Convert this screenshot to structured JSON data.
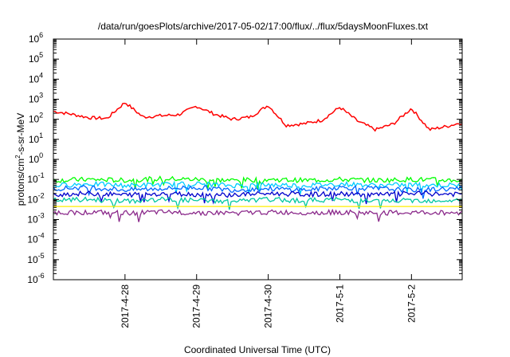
{
  "chart_data": {
    "type": "line",
    "title": "/data/run/goesPlots/archive/2017-05-02/17:00/flux/../flux/5daysMoonFluxes.txt",
    "xlabel": "Coordinated Universal Time (UTC)",
    "ylabel": "protons/cm2-s-sr-MeV",
    "y_scale": "log",
    "ylim": [
      1e-06,
      1000000.0
    ],
    "xlim": [
      "2017-04-27 00:00",
      "2017-05-02 17:00"
    ],
    "grid": false,
    "legend": "none",
    "x_ticks": [
      "2017-4-28",
      "2017-4-29",
      "2017-4-30",
      "2017-5-1",
      "2017-5-2"
    ],
    "y_ticks": [
      {
        "base": "10",
        "exp": "-6"
      },
      {
        "base": "10",
        "exp": "-5"
      },
      {
        "base": "10",
        "exp": "-4"
      },
      {
        "base": "10",
        "exp": "-3"
      },
      {
        "base": "10",
        "exp": "-2"
      },
      {
        "base": "10",
        "exp": "-1"
      },
      {
        "base": "10",
        "exp": "0"
      },
      {
        "base": "10",
        "exp": "1"
      },
      {
        "base": "10",
        "exp": "2"
      },
      {
        "base": "10",
        "exp": "3"
      },
      {
        "base": "10",
        "exp": "4"
      },
      {
        "base": "10",
        "exp": "5"
      },
      {
        "base": "10",
        "exp": "6"
      }
    ],
    "series": [
      {
        "color": "#ff0000",
        "x": [
          "2017-04-27 00:00",
          "2017-04-27 06:00",
          "2017-04-27 12:00",
          "2017-04-27 18:00",
          "2017-04-28 00:00",
          "2017-04-28 06:00",
          "2017-04-28 12:00",
          "2017-04-28 18:00",
          "2017-04-29 00:00",
          "2017-04-29 06:00",
          "2017-04-29 12:00",
          "2017-04-29 18:00",
          "2017-04-30 00:00",
          "2017-04-30 06:00",
          "2017-04-30 12:00",
          "2017-04-30 18:00",
          "2017-05-01 00:00",
          "2017-05-01 06:00",
          "2017-05-01 12:00",
          "2017-05-01 18:00",
          "2017-05-02 00:00",
          "2017-05-02 06:00",
          "2017-05-02 12:00",
          "2017-05-02 17:00"
        ],
        "y": [
          250,
          180,
          120,
          110,
          700,
          130,
          150,
          170,
          450,
          180,
          100,
          130,
          500,
          50,
          60,
          90,
          400,
          80,
          30,
          60,
          350,
          30,
          45,
          70
        ]
      },
      {
        "color": "#00ff00",
        "x": [
          "2017-04-27 00:00",
          "2017-04-27 12:00",
          "2017-04-28 00:00",
          "2017-04-28 12:00",
          "2017-04-29 00:00",
          "2017-04-29 12:00",
          "2017-04-30 00:00",
          "2017-04-30 12:00",
          "2017-05-01 00:00",
          "2017-05-01 12:00",
          "2017-05-02 00:00",
          "2017-05-02 17:00"
        ],
        "y": [
          0.09,
          0.1,
          0.09,
          0.11,
          0.1,
          0.09,
          0.1,
          0.09,
          0.1,
          0.09,
          0.1,
          0.09
        ]
      },
      {
        "color": "#00ccff",
        "x": [
          "2017-04-27 00:00",
          "2017-04-27 12:00",
          "2017-04-28 00:00",
          "2017-04-28 12:00",
          "2017-04-29 00:00",
          "2017-04-29 12:00",
          "2017-04-30 00:00",
          "2017-04-30 12:00",
          "2017-05-01 00:00",
          "2017-05-01 12:00",
          "2017-05-02 00:00",
          "2017-05-02 17:00"
        ],
        "y": [
          0.05,
          0.06,
          0.05,
          0.055,
          0.06,
          0.05,
          0.055,
          0.05,
          0.06,
          0.05,
          0.055,
          0.05
        ]
      },
      {
        "color": "#0066ff",
        "x": [
          "2017-04-27 00:00",
          "2017-04-27 12:00",
          "2017-04-28 00:00",
          "2017-04-28 12:00",
          "2017-04-29 00:00",
          "2017-04-29 12:00",
          "2017-04-30 00:00",
          "2017-04-30 12:00",
          "2017-05-01 00:00",
          "2017-05-01 12:00",
          "2017-05-02 00:00",
          "2017-05-02 17:00"
        ],
        "y": [
          0.035,
          0.04,
          0.03,
          0.035,
          0.04,
          0.03,
          0.035,
          0.03,
          0.04,
          0.035,
          0.03,
          0.035
        ]
      },
      {
        "color": "#0000cc",
        "x": [
          "2017-04-27 00:00",
          "2017-04-27 12:00",
          "2017-04-28 00:00",
          "2017-04-28 12:00",
          "2017-04-29 00:00",
          "2017-04-29 12:00",
          "2017-04-30 00:00",
          "2017-04-30 12:00",
          "2017-05-01 00:00",
          "2017-05-01 12:00",
          "2017-05-02 00:00",
          "2017-05-02 17:00"
        ],
        "y": [
          0.018,
          0.02,
          0.017,
          0.02,
          0.018,
          0.017,
          0.02,
          0.018,
          0.019,
          0.017,
          0.02,
          0.018
        ]
      },
      {
        "color": "#00c8a0",
        "x": [
          "2017-04-27 00:00",
          "2017-04-27 12:00",
          "2017-04-28 00:00",
          "2017-04-28 12:00",
          "2017-04-29 00:00",
          "2017-04-29 12:00",
          "2017-04-30 00:00",
          "2017-04-30 12:00",
          "2017-05-01 00:00",
          "2017-05-01 12:00",
          "2017-05-02 00:00",
          "2017-05-02 17:00"
        ],
        "y": [
          0.009,
          0.01,
          0.008,
          0.01,
          0.009,
          0.008,
          0.01,
          0.009,
          0.01,
          0.008,
          0.009,
          0.009
        ]
      },
      {
        "color": "#ffee00",
        "x": [
          "2017-04-27 00:00",
          "2017-05-02 17:00"
        ],
        "y": [
          0.0045,
          0.0045
        ]
      },
      {
        "color": "#8b2a8b",
        "x": [
          "2017-04-27 00:00",
          "2017-04-27 12:00",
          "2017-04-28 00:00",
          "2017-04-28 12:00",
          "2017-04-29 00:00",
          "2017-04-29 12:00",
          "2017-04-30 00:00",
          "2017-04-30 12:00",
          "2017-05-01 00:00",
          "2017-05-01 12:00",
          "2017-05-02 00:00",
          "2017-05-02 17:00"
        ],
        "y": [
          0.0022,
          0.0023,
          0.0021,
          0.0023,
          0.0022,
          0.0021,
          0.0023,
          0.0022,
          0.0023,
          0.0021,
          0.0022,
          0.0022
        ]
      }
    ]
  }
}
